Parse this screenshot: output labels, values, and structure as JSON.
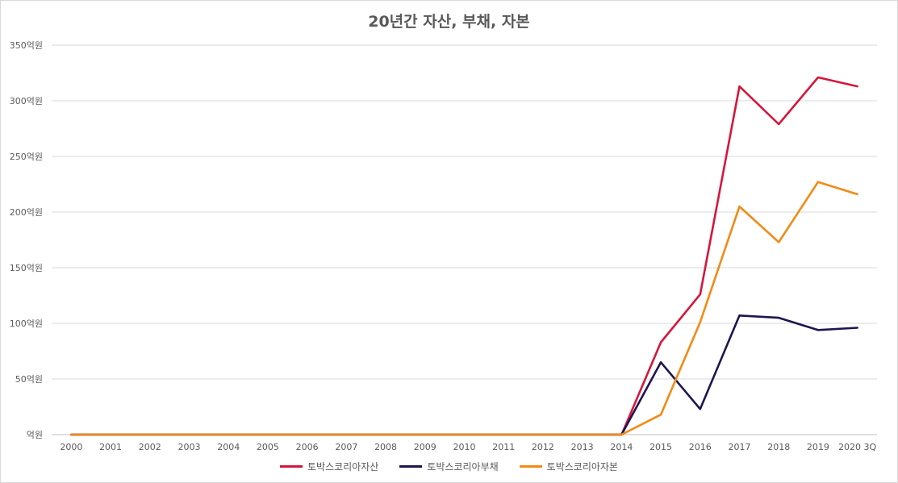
{
  "chart_data": {
    "type": "line",
    "title": "20년간 자산, 부채, 자본",
    "xlabel": "",
    "ylabel": "",
    "categories": [
      "2000",
      "2001",
      "2002",
      "2003",
      "2004",
      "2005",
      "2006",
      "2007",
      "2008",
      "2009",
      "2010",
      "2011",
      "2012",
      "2013",
      "2014",
      "2015",
      "2016",
      "2017",
      "2018",
      "2019",
      "2020 3Q"
    ],
    "ylim": [
      0,
      350
    ],
    "yticks": [
      {
        "value": 0,
        "label": "억원"
      },
      {
        "value": 50,
        "label": "50억원"
      },
      {
        "value": 100,
        "label": "100억원"
      },
      {
        "value": 150,
        "label": "150억원"
      },
      {
        "value": 200,
        "label": "200억원"
      },
      {
        "value": 250,
        "label": "250억원"
      },
      {
        "value": 300,
        "label": "300억원"
      },
      {
        "value": 350,
        "label": "350억원"
      }
    ],
    "grid": true,
    "legend_position": "bottom",
    "series": [
      {
        "name": "토박스코리아자산",
        "color": "#d6163c",
        "values": [
          0,
          0,
          0,
          0,
          0,
          0,
          0,
          0,
          0,
          0,
          0,
          0,
          0,
          0,
          0,
          83,
          126,
          313,
          279,
          321,
          313
        ]
      },
      {
        "name": "토박스코리아부채",
        "color": "#1f1450",
        "values": [
          0,
          0,
          0,
          0,
          0,
          0,
          0,
          0,
          0,
          0,
          0,
          0,
          0,
          0,
          0,
          65,
          23,
          107,
          105,
          94,
          96
        ]
      },
      {
        "name": "토박스코리아자본",
        "color": "#f28a16",
        "values": [
          0,
          0,
          0,
          0,
          0,
          0,
          0,
          0,
          0,
          0,
          0,
          0,
          0,
          0,
          0,
          18,
          101,
          205,
          173,
          227,
          216
        ]
      }
    ]
  }
}
